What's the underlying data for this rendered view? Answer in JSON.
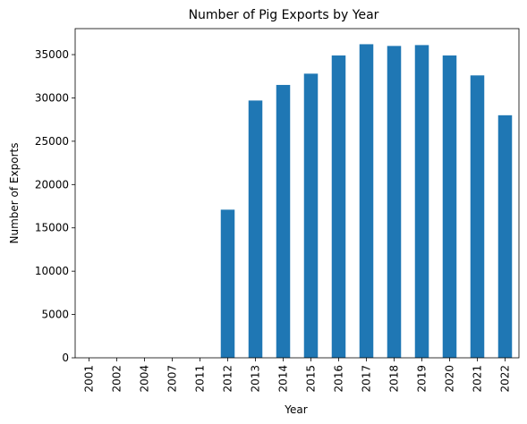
{
  "chart_data": {
    "type": "bar",
    "title": "Number of Pig Exports by Year",
    "xlabel": "Year",
    "ylabel": "Number of Exports",
    "categories": [
      "2001",
      "2002",
      "2004",
      "2007",
      "2011",
      "2012",
      "2013",
      "2014",
      "2015",
      "2016",
      "2017",
      "2018",
      "2019",
      "2020",
      "2021",
      "2022"
    ],
    "values": [
      0,
      0,
      0,
      0,
      0,
      17100,
      29700,
      31500,
      32800,
      34900,
      36200,
      36000,
      36100,
      34900,
      32600,
      28000
    ],
    "ylim": [
      0,
      38000
    ],
    "yticks": [
      0,
      5000,
      10000,
      15000,
      20000,
      25000,
      30000,
      35000
    ],
    "bar_color": "#1f77b4",
    "grid": false,
    "legend": "none"
  }
}
